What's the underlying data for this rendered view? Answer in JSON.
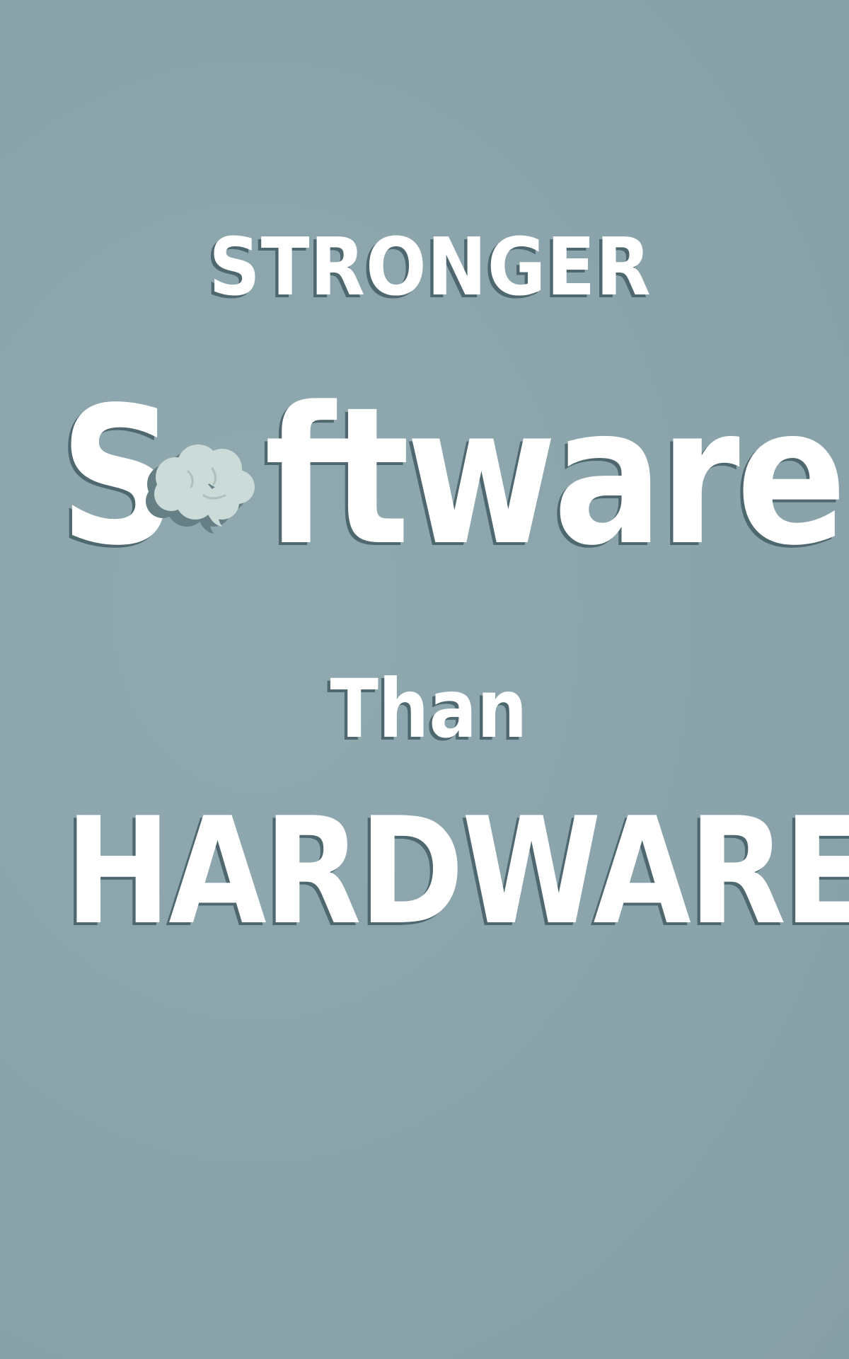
{
  "poster": {
    "line_1": "STRONGER",
    "line_2_start": "S",
    "line_2_end": "ftware",
    "line_3": "Than",
    "line_4": "HARDWARE"
  },
  "icons": {
    "letter_o": "brain-speech-bubble-icon"
  },
  "colors": {
    "background": "#8ba4ab",
    "text": "#ffffff",
    "text_shadow": "#4f6870",
    "icon_fill": "#cbdbd8",
    "icon_shadow": "#667f85"
  }
}
